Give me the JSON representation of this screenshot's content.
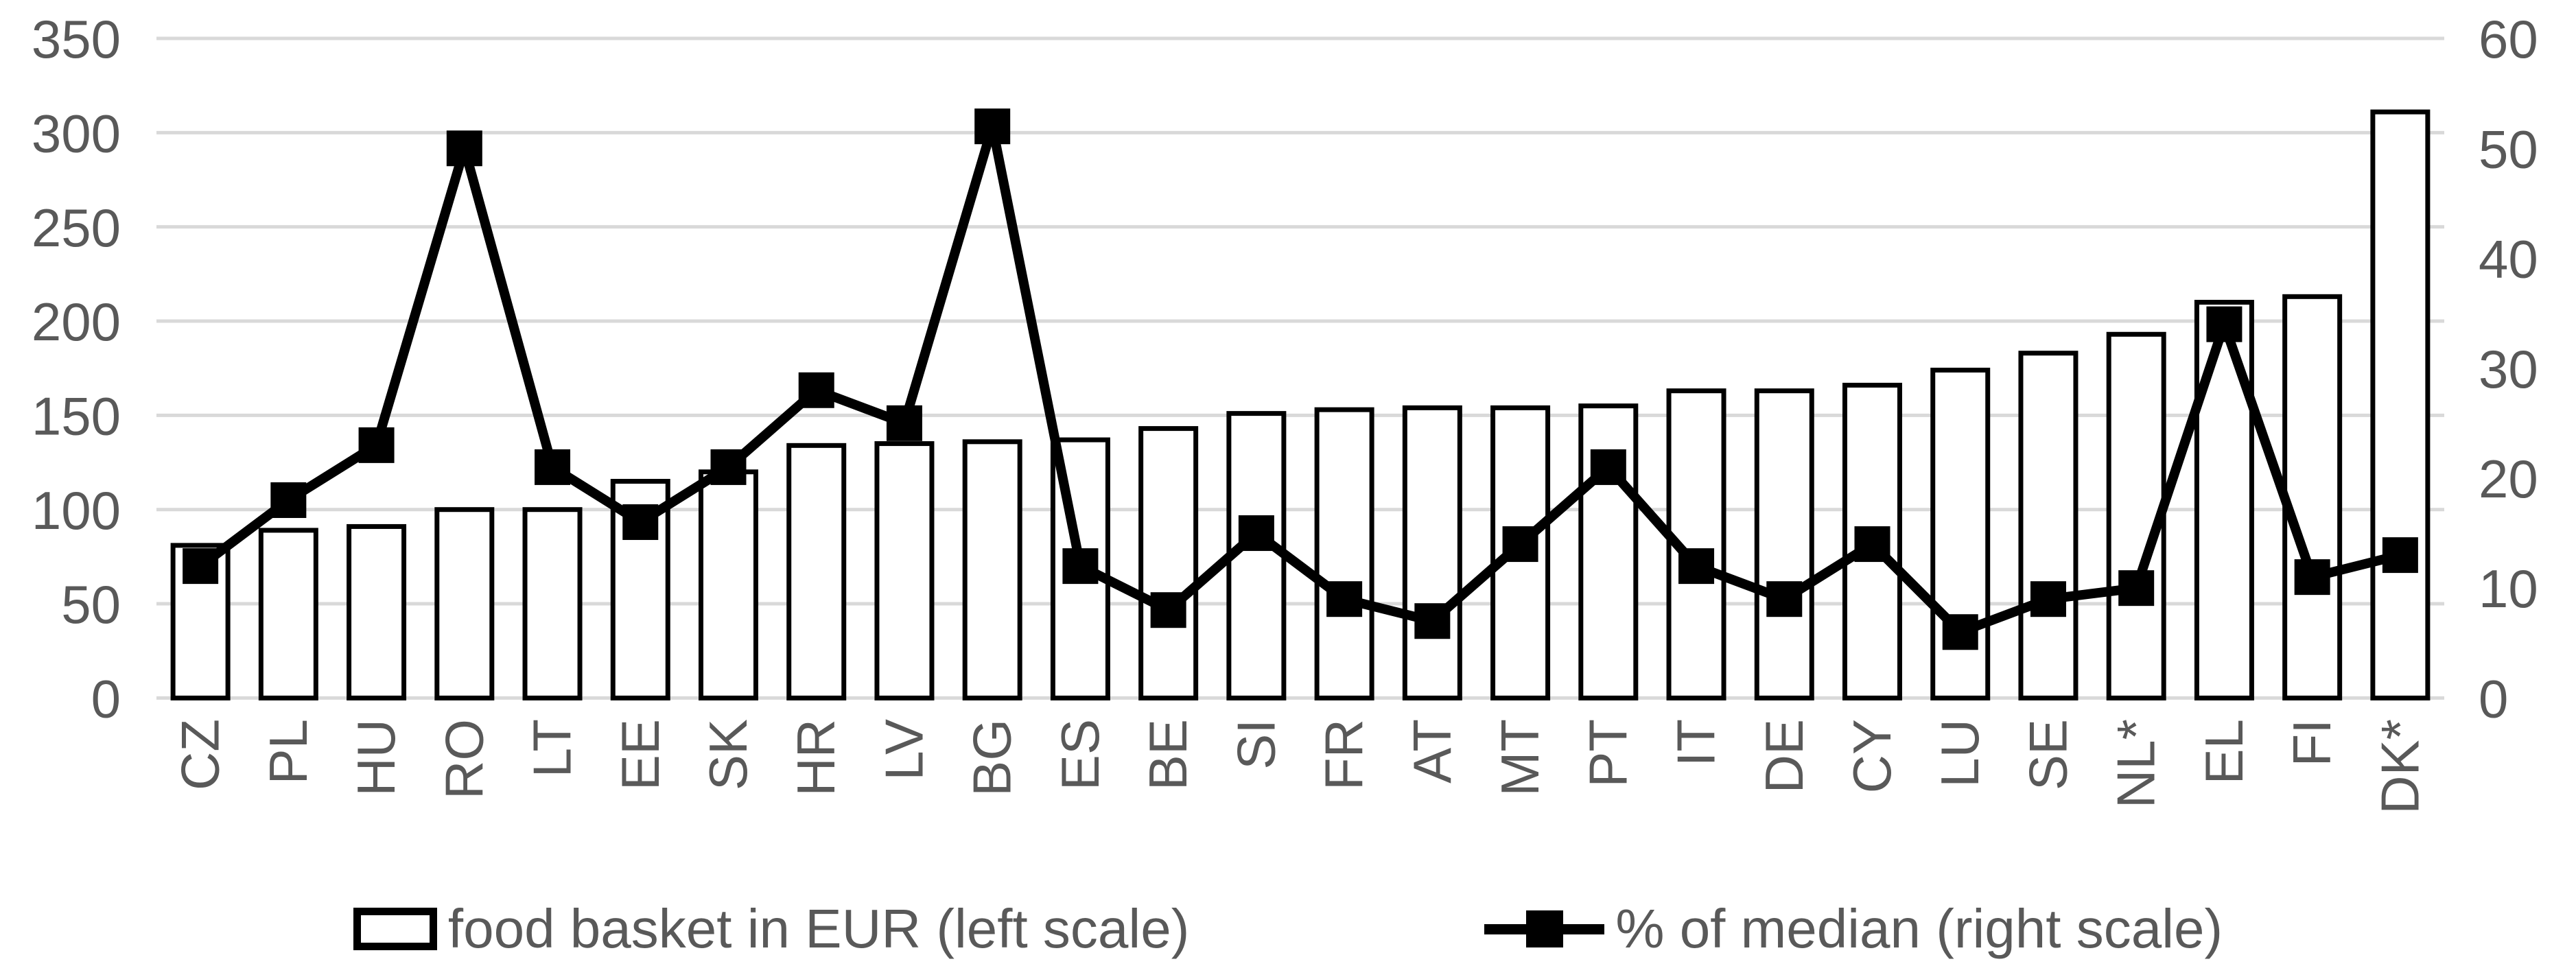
{
  "chart_data": {
    "type": "bar",
    "subtype": "combo-bar-line-dual-axis",
    "title": "",
    "categories": [
      "CZ",
      "PL",
      "HU",
      "RO",
      "LT",
      "EE",
      "SK",
      "HR",
      "LV",
      "BG",
      "ES",
      "BE",
      "SI",
      "FR",
      "AT",
      "MT",
      "PT",
      "IT",
      "DE",
      "CY",
      "LU",
      "SE",
      "NL*",
      "EL",
      "FI",
      "DK*"
    ],
    "series": [
      {
        "name": "food basket in EUR (left scale)",
        "type": "bar",
        "axis": "left",
        "values": [
          81,
          89,
          91,
          100,
          100,
          115,
          120,
          134,
          135,
          136,
          137,
          143,
          151,
          153,
          154,
          154,
          155,
          163,
          163,
          166,
          174,
          183,
          193,
          210,
          213,
          311
        ]
      },
      {
        "name": "% of median (right scale)",
        "type": "line",
        "axis": "right",
        "values": [
          12,
          18,
          23,
          50,
          21,
          16,
          21,
          28,
          25,
          52,
          12,
          8,
          15,
          9,
          7,
          14,
          21,
          12,
          9,
          14,
          6,
          9,
          10,
          34,
          11,
          13
        ]
      }
    ],
    "left_axis": {
      "min": 0,
      "max": 350,
      "step": 50,
      "ticks": [
        350,
        300,
        250,
        200,
        150,
        100,
        50,
        0
      ]
    },
    "right_axis": {
      "min": 0,
      "max": 60,
      "step": 10,
      "ticks": [
        60,
        50,
        40,
        30,
        20,
        10,
        0
      ]
    },
    "xlabel": "",
    "ylabel": "",
    "grid": "horizontal",
    "legend_position": "bottom",
    "x_label_rotation": -90,
    "colors": {
      "background": "#ffffff",
      "bar_fill": "#ffffff",
      "bar_border": "#000000",
      "line": "#000000",
      "marker": "#000000",
      "gridline": "#d9d9d9",
      "axis_text": "#595959"
    }
  }
}
